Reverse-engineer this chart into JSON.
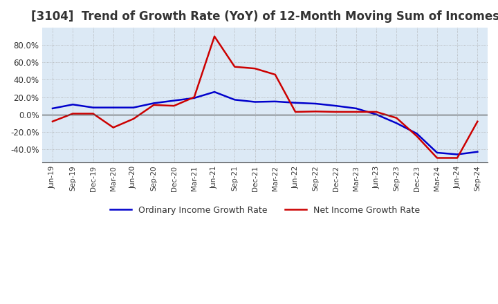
{
  "title": "[3104]  Trend of Growth Rate (YoY) of 12-Month Moving Sum of Incomes",
  "title_fontsize": 12,
  "ylim": [
    -55,
    100
  ],
  "yticks": [
    -40,
    -20,
    0,
    20,
    40,
    60,
    80
  ],
  "background_color": "#dce9f5",
  "plot_bg_color": "#dce9f5",
  "grid_color": "#aaaaaa",
  "zero_line_color": "#555555",
  "line1_color": "#0000cc",
  "line2_color": "#cc0000",
  "legend1": "Ordinary Income Growth Rate",
  "legend2": "Net Income Growth Rate",
  "dates": [
    "Jun-19",
    "Sep-19",
    "Dec-19",
    "Mar-20",
    "Jun-20",
    "Sep-20",
    "Dec-20",
    "Mar-21",
    "Jun-21",
    "Sep-21",
    "Dec-21",
    "Mar-22",
    "Jun-22",
    "Sep-22",
    "Dec-22",
    "Mar-23",
    "Jun-23",
    "Sep-23",
    "Dec-23",
    "Mar-24",
    "Jun-24",
    "Sep-24"
  ],
  "ordinary_income": [
    7.0,
    11.5,
    8.0,
    8.0,
    8.0,
    13.0,
    16.0,
    19.0,
    26.0,
    17.0,
    14.5,
    15.0,
    13.5,
    12.5,
    10.0,
    7.0,
    0.0,
    -10.0,
    -22.0,
    -44.0,
    -46.0,
    -43.0
  ],
  "net_income": [
    -8.0,
    1.0,
    1.0,
    -15.0,
    -5.0,
    11.0,
    10.0,
    20.0,
    90.0,
    55.0,
    53.0,
    46.0,
    3.0,
    3.5,
    3.0,
    3.0,
    3.0,
    -4.0,
    -25.0,
    -50.0,
    -50.0,
    -8.0
  ]
}
